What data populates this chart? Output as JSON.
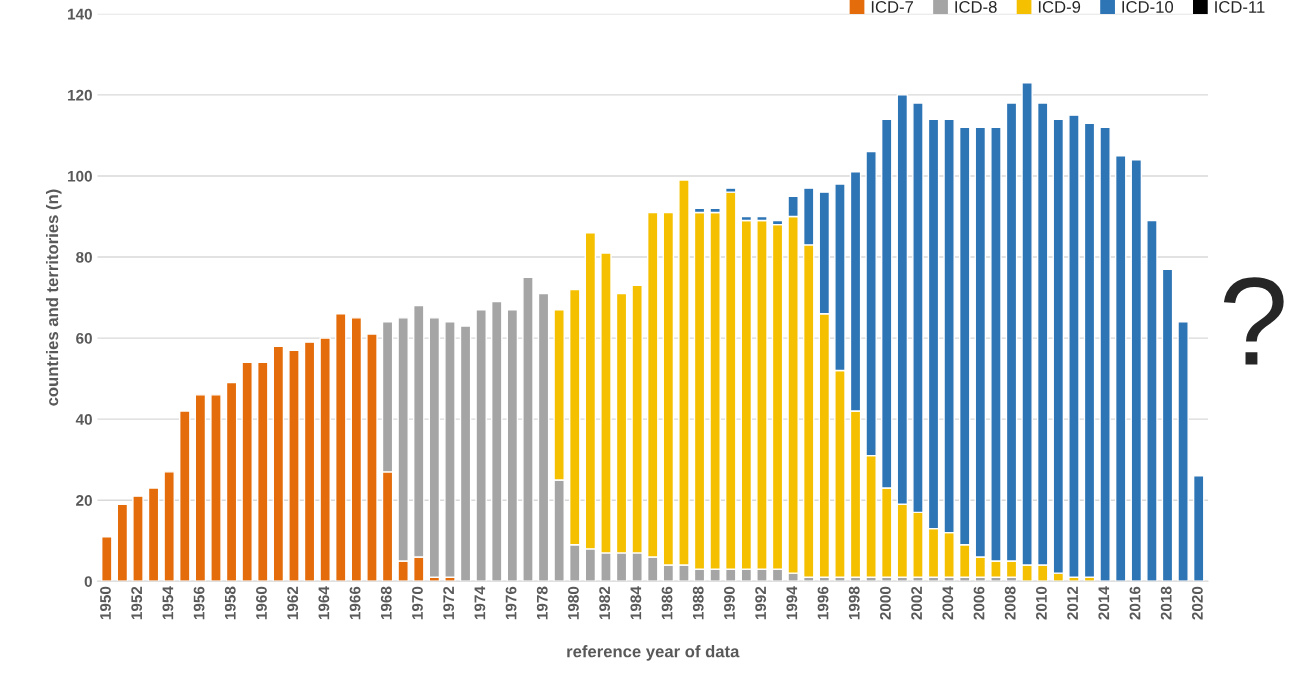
{
  "chart_data": {
    "type": "bar",
    "stacked": true,
    "xlabel": "reference year of data",
    "ylabel": "countries and territories (n)",
    "categories": [
      "1950",
      null,
      "1952",
      null,
      "1954",
      null,
      "1956",
      null,
      "1958",
      null,
      "1960",
      null,
      "1962",
      null,
      "1964",
      null,
      "1966",
      null,
      "1968",
      null,
      "1970",
      null,
      "1972",
      null,
      "1974",
      null,
      "1976",
      null,
      "1978",
      null,
      "1980",
      null,
      "1982",
      null,
      "1984",
      null,
      "1986",
      null,
      "1988",
      null,
      "1990",
      null,
      "1992",
      null,
      "1994",
      null,
      "1996",
      null,
      "1998",
      null,
      "2000",
      null,
      "2002",
      null,
      "2004",
      null,
      "2006",
      null,
      "2008",
      null,
      "2010",
      null,
      "2012",
      null,
      "2014",
      null,
      "2016",
      null,
      "2018",
      null,
      "2020"
    ],
    "series": [
      {
        "name": "ICD-7",
        "color": "#e46c0a",
        "values": [
          11,
          19,
          21,
          23,
          27,
          42,
          46,
          46,
          49,
          54,
          54,
          58,
          57,
          59,
          60,
          66,
          65,
          61,
          27,
          5,
          6,
          1,
          1,
          null,
          null,
          null,
          null,
          null,
          null,
          null,
          null,
          null,
          null,
          null,
          null,
          null,
          null,
          null,
          null,
          null,
          null,
          null,
          null,
          null,
          null,
          null,
          null,
          null,
          null,
          null,
          null,
          null,
          null,
          null,
          null,
          null,
          null,
          null,
          null,
          null,
          null,
          null,
          null,
          null,
          null,
          null,
          null,
          null,
          null,
          null,
          null
        ]
      },
      {
        "name": "ICD-8",
        "color": "#a5a5a5",
        "values": [
          null,
          null,
          null,
          null,
          null,
          null,
          null,
          null,
          null,
          null,
          null,
          null,
          null,
          null,
          null,
          null,
          null,
          null,
          37,
          60,
          62,
          64,
          63,
          63,
          67,
          69,
          67,
          75,
          71,
          25,
          9,
          8,
          7,
          7,
          7,
          6,
          4,
          4,
          3,
          3,
          3,
          3,
          3,
          3,
          2,
          1,
          1,
          1,
          1,
          1,
          1,
          1,
          1,
          1,
          1,
          1,
          1,
          1,
          1,
          null,
          null,
          null,
          null,
          null,
          null,
          null,
          null,
          null,
          null,
          null,
          null
        ]
      },
      {
        "name": "ICD-9",
        "color": "#f5c000",
        "values": [
          null,
          null,
          null,
          null,
          null,
          null,
          null,
          null,
          null,
          null,
          null,
          null,
          null,
          null,
          null,
          null,
          null,
          null,
          null,
          null,
          null,
          null,
          null,
          null,
          null,
          null,
          null,
          null,
          null,
          42,
          63,
          78,
          74,
          64,
          66,
          85,
          87,
          95,
          88,
          88,
          93,
          86,
          86,
          85,
          88,
          82,
          65,
          51,
          41,
          30,
          22,
          18,
          16,
          12,
          11,
          8,
          5,
          4,
          4,
          4,
          4,
          2,
          1,
          1,
          null,
          null,
          null,
          null,
          null,
          null,
          null
        ]
      },
      {
        "name": "ICD-10",
        "color": "#2e75b6",
        "values": [
          null,
          null,
          null,
          null,
          null,
          null,
          null,
          null,
          null,
          null,
          null,
          null,
          null,
          null,
          null,
          null,
          null,
          null,
          null,
          null,
          null,
          null,
          null,
          null,
          null,
          null,
          null,
          null,
          null,
          null,
          null,
          null,
          null,
          null,
          null,
          null,
          null,
          null,
          1,
          1,
          1,
          1,
          1,
          1,
          5,
          14,
          30,
          46,
          59,
          75,
          91,
          101,
          101,
          101,
          102,
          103,
          106,
          107,
          113,
          119,
          114,
          112,
          114,
          112,
          112,
          105,
          104,
          89,
          77,
          64,
          26
        ]
      },
      {
        "name": "ICD-11",
        "color": "#000000",
        "values": [
          null,
          null,
          null,
          null,
          null,
          null,
          null,
          null,
          null,
          null,
          null,
          null,
          null,
          null,
          null,
          null,
          null,
          null,
          null,
          null,
          null,
          null,
          null,
          null,
          null,
          null,
          null,
          null,
          null,
          null,
          null,
          null,
          null,
          null,
          null,
          null,
          null,
          null,
          null,
          null,
          null,
          null,
          null,
          null,
          null,
          null,
          null,
          null,
          null,
          null,
          null,
          null,
          null,
          null,
          null,
          null,
          null,
          null,
          null,
          null,
          null,
          null,
          null,
          null,
          null,
          null,
          null,
          null,
          null,
          null,
          null
        ]
      }
    ],
    "ylim": [
      0,
      140
    ],
    "yticks": [
      0,
      20,
      40,
      60,
      80,
      100,
      120,
      140
    ],
    "grid": "y",
    "legend": "top right",
    "annotations": [
      "?"
    ]
  }
}
